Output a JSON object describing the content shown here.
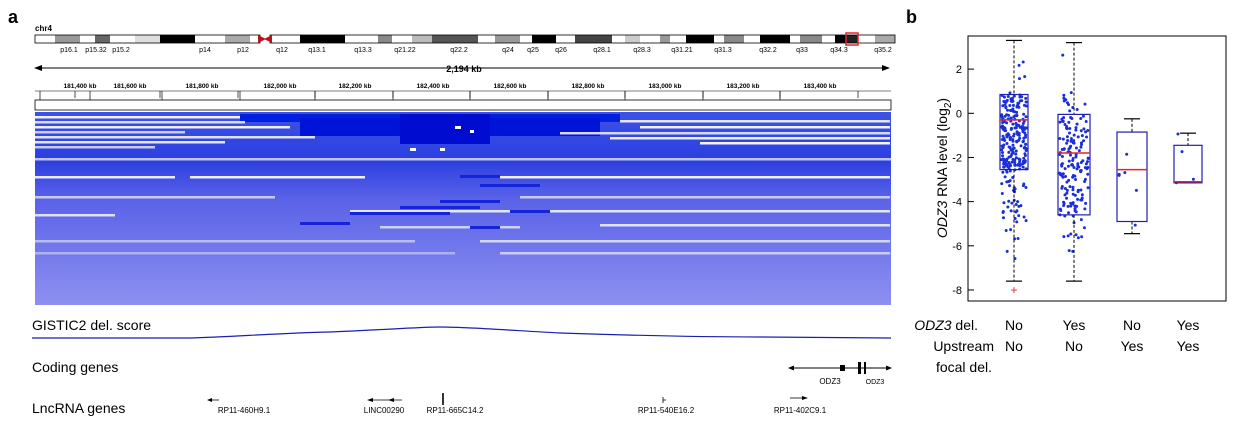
{
  "panels": {
    "a": "a",
    "b": "b"
  },
  "chromosome": {
    "name": "chr4",
    "bands": [
      "p16.1",
      "p15.32",
      "p15.2",
      "p14",
      "p12",
      "q12",
      "q13.1",
      "q13.3",
      "q21.22",
      "q22.2",
      "q24",
      "q25",
      "q26",
      "q28.1",
      "q28.3",
      "q31.21",
      "q31.3",
      "q32.2",
      "q33",
      "q34.3",
      "q35.2"
    ],
    "span_label": "2,194 kb",
    "region_ticks": [
      "181,400 kb",
      "181,600 kb",
      "181,800 kb",
      "182,000 kb",
      "182,200 kb",
      "182,400 kb",
      "182,600 kb",
      "182,800 kb",
      "183,000 kb",
      "183,200 kb",
      "183,400 kb"
    ]
  },
  "tracks": {
    "gistic_label": "GISTIC2 del. score",
    "coding_label": "Coding genes",
    "lncrna_label": "LncRNA genes",
    "coding_genes": [
      "ODZ3",
      "ODZ3"
    ],
    "lncrna_genes": [
      "RP11-460H9.1",
      "LINC00290",
      "RP11-665C14.2",
      "RP11-540E16.2",
      "RP11-402C9.1"
    ]
  },
  "colors": {
    "deletion_dark": "#0010d8",
    "deletion_light": "#8a8ef0",
    "box": "#1f1fb3",
    "median": "#e8202a",
    "points": "#1a2fd6",
    "ideogram_highlight": "#e8202a"
  },
  "chart_data": {
    "type": "box",
    "ylabel_gene": "ODZ3",
    "ylabel_rest": " RNA level (log",
    "ylabel_sub": "2",
    "ylabel_close": ")",
    "ylim": [
      -8.5,
      3.5
    ],
    "yticks": [
      "2",
      "0",
      "-2",
      "-4",
      "-6",
      "-8"
    ],
    "row_labels": [
      {
        "gene": "ODZ3",
        "rest": " del."
      },
      {
        "gene": "",
        "rest": "Upstream"
      },
      {
        "gene": "",
        "rest": "focal del."
      }
    ],
    "categories": [
      {
        "row1": "No",
        "row2": "No"
      },
      {
        "row1": "Yes",
        "row2": "No"
      },
      {
        "row1": "No",
        "row2": "Yes"
      },
      {
        "row1": "Yes",
        "row2": "Yes"
      }
    ],
    "boxes": [
      {
        "q1": -2.55,
        "median": -0.3,
        "q3": 0.85,
        "whisker_low": -7.6,
        "whisker_high": 3.3,
        "n_points": 260,
        "outliers": [
          -8.0
        ]
      },
      {
        "q1": -4.6,
        "median": -1.8,
        "q3": -0.05,
        "whisker_low": -7.6,
        "whisker_high": 3.2,
        "n_points": 170,
        "outliers": []
      },
      {
        "q1": -4.9,
        "median": -2.55,
        "q3": -0.85,
        "whisker_low": -5.45,
        "whisker_high": -0.25,
        "n_points": 6,
        "outliers": []
      },
      {
        "q1": -3.15,
        "median": -3.1,
        "q3": -1.45,
        "whisker_low": -3.15,
        "whisker_high": -0.9,
        "n_points": 4,
        "outliers": []
      }
    ]
  }
}
